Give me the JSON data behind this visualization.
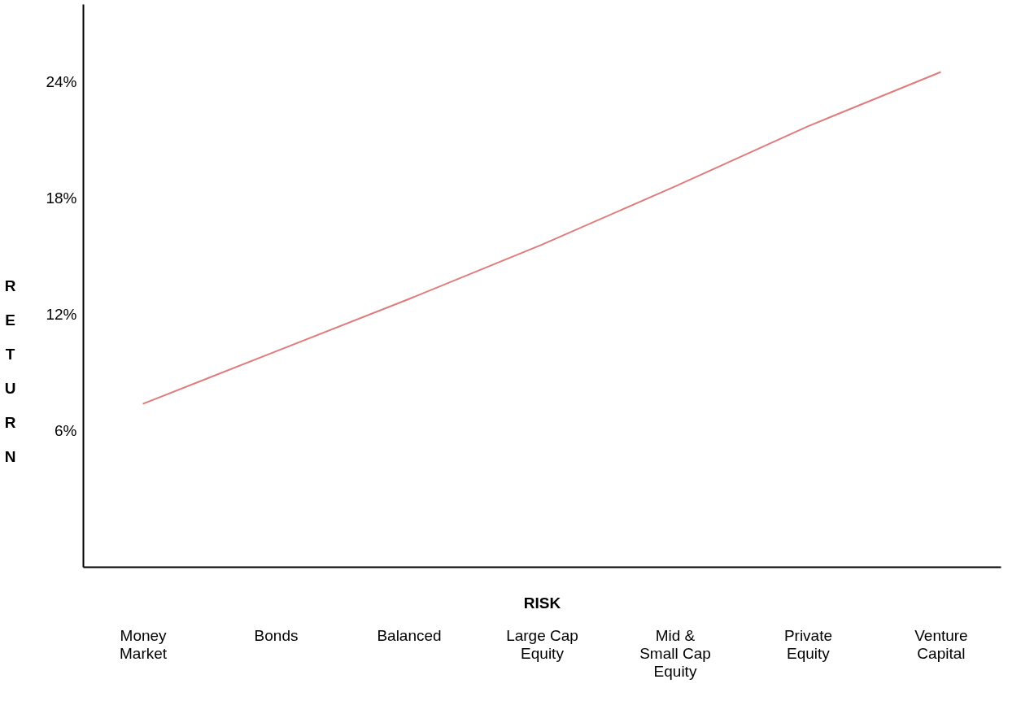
{
  "chart_data": {
    "type": "line",
    "xlabel": "RISK",
    "ylabel": "RETURN",
    "categories": [
      "Money Market",
      "Bonds",
      "Balanced",
      "Large Cap Equity",
      "Mid & Small Cap Equity",
      "Private Equity",
      "Venture Capital"
    ],
    "series": [
      {
        "color": "#e07b7b",
        "values": [
          7.4,
          10.1,
          12.8,
          15.6,
          18.6,
          21.7,
          24.5
        ]
      }
    ],
    "ylim": [
      -1,
      28
    ],
    "yticks": [
      {
        "value": 6,
        "label": "6%"
      },
      {
        "value": 12,
        "label": "12%"
      },
      {
        "value": 18,
        "label": "18%"
      },
      {
        "value": 24,
        "label": "24%"
      }
    ],
    "grid": false,
    "marker": "none",
    "line_style": "solid"
  }
}
